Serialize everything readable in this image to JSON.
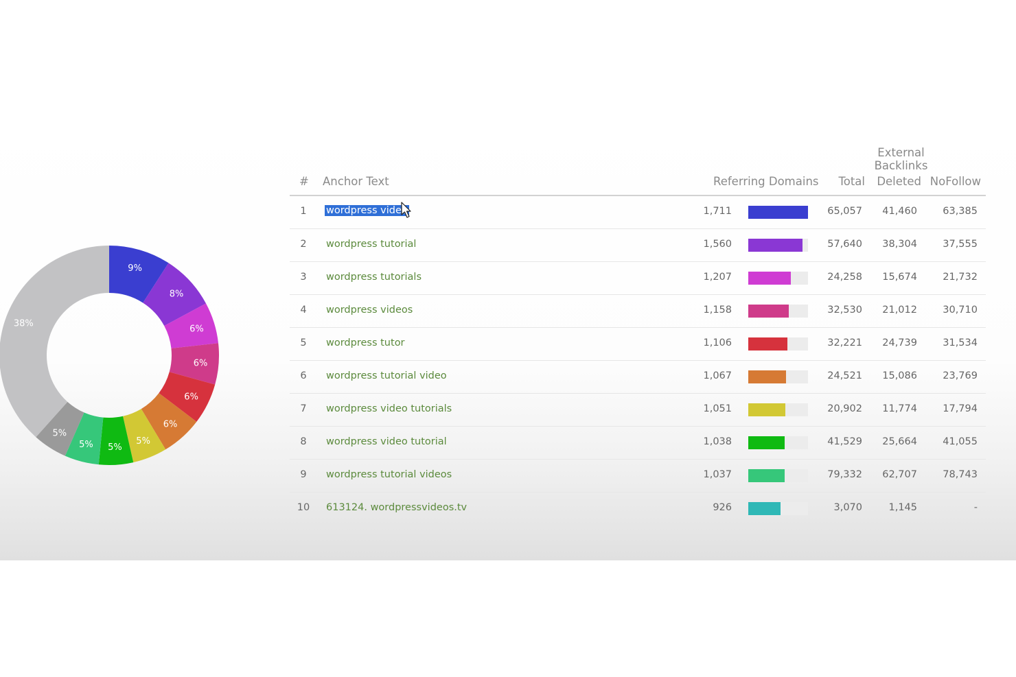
{
  "table": {
    "group_header": "External Backlinks",
    "columns": {
      "num": "#",
      "anchor": "Anchor Text",
      "referring": "Referring Domains",
      "total": "Total",
      "deleted": "Deleted",
      "nofollow": "NoFollow"
    },
    "rows": [
      {
        "num": "1",
        "anchor": "wordpress video",
        "referring": "1,711",
        "total": "65,057",
        "deleted": "41,460",
        "nofollow": "63,385",
        "bar_fraction": 1.0,
        "bar_color": "#3a3ed0"
      },
      {
        "num": "2",
        "anchor": "wordpress tutorial",
        "referring": "1,560",
        "total": "57,640",
        "deleted": "38,304",
        "nofollow": "37,555",
        "bar_fraction": 0.91,
        "bar_color": "#8a37d4"
      },
      {
        "num": "3",
        "anchor": "wordpress tutorials",
        "referring": "1,207",
        "total": "24,258",
        "deleted": "15,674",
        "nofollow": "21,732",
        "bar_fraction": 0.71,
        "bar_color": "#cf3cd3"
      },
      {
        "num": "4",
        "anchor": "wordpress videos",
        "referring": "1,158",
        "total": "32,530",
        "deleted": "21,012",
        "nofollow": "30,710",
        "bar_fraction": 0.68,
        "bar_color": "#cf3b8a"
      },
      {
        "num": "5",
        "anchor": "wordpress tutor",
        "referring": "1,106",
        "total": "32,221",
        "deleted": "24,739",
        "nofollow": "31,534",
        "bar_fraction": 0.65,
        "bar_color": "#d6323d"
      },
      {
        "num": "6",
        "anchor": "wordpress tutorial video",
        "referring": "1,067",
        "total": "24,521",
        "deleted": "15,086",
        "nofollow": "23,769",
        "bar_fraction": 0.63,
        "bar_color": "#d67a34"
      },
      {
        "num": "7",
        "anchor": "wordpress video tutorials",
        "referring": "1,051",
        "total": "20,902",
        "deleted": "11,774",
        "nofollow": "17,794",
        "bar_fraction": 0.62,
        "bar_color": "#d2c834"
      },
      {
        "num": "8",
        "anchor": "wordpress video tutorial",
        "referring": "1,038",
        "total": "41,529",
        "deleted": "25,664",
        "nofollow": "41,055",
        "bar_fraction": 0.61,
        "bar_color": "#0fba12"
      },
      {
        "num": "9",
        "anchor": "wordpress tutorial videos",
        "referring": "1,037",
        "total": "79,332",
        "deleted": "62,707",
        "nofollow": "78,743",
        "bar_fraction": 0.61,
        "bar_color": "#36c77a"
      },
      {
        "num": "10",
        "anchor": "613124. wordpressvideos.tv",
        "referring": "926",
        "total": "3,070",
        "deleted": "1,145",
        "nofollow": "-",
        "bar_fraction": 0.54,
        "bar_color": "#2fb8b6"
      }
    ]
  },
  "chart_data": {
    "type": "pie",
    "variant": "donut",
    "slices": [
      {
        "label": "9%",
        "value": 9,
        "color": "#3a3ed0"
      },
      {
        "label": "8%",
        "value": 8,
        "color": "#8a37d4"
      },
      {
        "label": "6%",
        "value": 6,
        "color": "#cf3cd3"
      },
      {
        "label": "6%",
        "value": 6,
        "color": "#cf3b8a"
      },
      {
        "label": "6%",
        "value": 6,
        "color": "#d6323d"
      },
      {
        "label": "6%",
        "value": 6,
        "color": "#d67a34"
      },
      {
        "label": "5%",
        "value": 5,
        "color": "#d2c834"
      },
      {
        "label": "5%",
        "value": 5,
        "color": "#0fba12"
      },
      {
        "label": "5%",
        "value": 5,
        "color": "#36c77a"
      },
      {
        "label": "5%",
        "value": 5,
        "color": "#9a9a9a"
      },
      {
        "label": "38%",
        "value": 38,
        "color": "#c2c2c4"
      }
    ]
  }
}
